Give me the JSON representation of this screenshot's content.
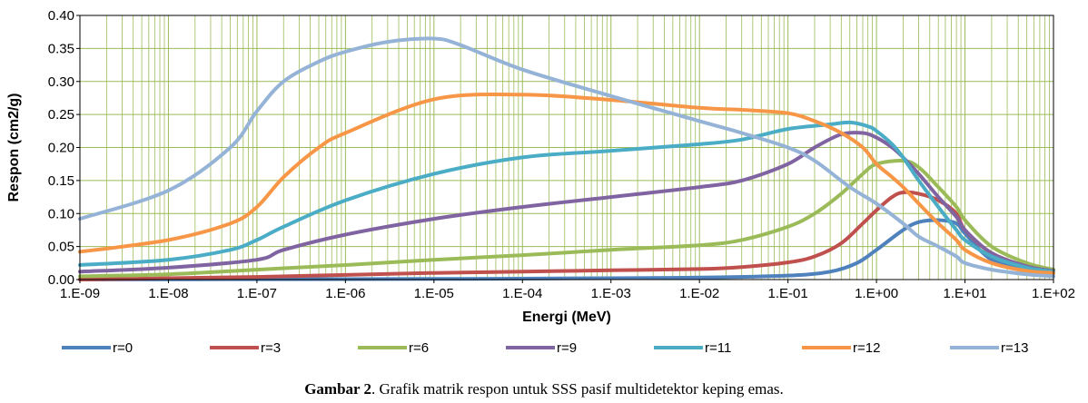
{
  "caption": {
    "label": "Gambar 2",
    "text": ".   Grafik matrik respon untuk SSS pasif multidetektor keping emas."
  },
  "chart_data": {
    "type": "line",
    "xscale": "log",
    "xlabel": "Energi (MeV)",
    "ylabel": "Respon (cm2/g)",
    "xlim": [
      1e-09,
      100
    ],
    "ylim": [
      0,
      0.4
    ],
    "x_ticks": [
      "1.E-09",
      "1.E-08",
      "1.E-07",
      "1.E-06",
      "1.E-05",
      "1.E-04",
      "1.E-03",
      "1.E-02",
      "1.E-01",
      "1.E+00",
      "1.E+01",
      "1.E+02"
    ],
    "y_ticks": [
      "0.00",
      "0.05",
      "0.10",
      "0.15",
      "0.20",
      "0.25",
      "0.30",
      "0.35",
      "0.40"
    ],
    "grid": "log-minor vertical, major horizontal",
    "grid_color": "#9bbb59",
    "legend_position": "bottom",
    "series": [
      {
        "name": "r=0",
        "color": "#4f81bd",
        "x": [
          1e-09,
          1e-07,
          1e-05,
          0.001,
          0.01,
          0.1,
          0.3,
          0.6,
          1,
          2,
          3,
          5,
          8,
          10,
          20,
          50,
          100
        ],
        "y": [
          0.0,
          0.0005,
          0.001,
          0.002,
          0.003,
          0.006,
          0.012,
          0.025,
          0.045,
          0.075,
          0.087,
          0.09,
          0.085,
          0.07,
          0.03,
          0.015,
          0.01
        ]
      },
      {
        "name": "r=3",
        "color": "#c0504d",
        "x": [
          1e-09,
          1e-08,
          1e-07,
          1e-06,
          1e-05,
          0.0001,
          0.001,
          0.01,
          0.03,
          0.1,
          0.2,
          0.4,
          0.7,
          1,
          1.5,
          2,
          3,
          5,
          8,
          10,
          20,
          50,
          100
        ],
        "y": [
          0.0,
          0.002,
          0.004,
          0.007,
          0.01,
          0.012,
          0.014,
          0.016,
          0.019,
          0.026,
          0.035,
          0.055,
          0.085,
          0.105,
          0.125,
          0.132,
          0.13,
          0.12,
          0.1,
          0.075,
          0.04,
          0.02,
          0.012
        ]
      },
      {
        "name": "r=6",
        "color": "#9bbb59",
        "x": [
          1e-09,
          1e-08,
          1e-07,
          1e-06,
          1e-05,
          0.0001,
          0.001,
          0.01,
          0.03,
          0.1,
          0.2,
          0.4,
          0.7,
          1,
          2,
          3,
          5,
          8,
          10,
          20,
          50,
          100
        ],
        "y": [
          0.005,
          0.008,
          0.015,
          0.022,
          0.03,
          0.037,
          0.045,
          0.052,
          0.06,
          0.08,
          0.1,
          0.13,
          0.16,
          0.175,
          0.18,
          0.17,
          0.14,
          0.11,
          0.09,
          0.05,
          0.025,
          0.015
        ]
      },
      {
        "name": "r=9",
        "color": "#8064a2",
        "x": [
          1e-09,
          1e-08,
          1e-07,
          2e-07,
          1e-06,
          1e-05,
          0.0001,
          0.001,
          0.01,
          0.03,
          0.1,
          0.2,
          0.4,
          0.7,
          1,
          1.5,
          2,
          3,
          5,
          8,
          10,
          20,
          50,
          100
        ],
        "y": [
          0.012,
          0.018,
          0.03,
          0.045,
          0.068,
          0.092,
          0.11,
          0.125,
          0.14,
          0.15,
          0.175,
          0.2,
          0.22,
          0.222,
          0.215,
          0.2,
          0.185,
          0.16,
          0.125,
          0.095,
          0.075,
          0.04,
          0.02,
          0.013
        ]
      },
      {
        "name": "r=11",
        "color": "#4bacc6",
        "x": [
          1e-09,
          1e-08,
          5e-08,
          1e-07,
          2e-07,
          1e-06,
          1e-05,
          0.0001,
          0.001,
          0.01,
          0.03,
          0.1,
          0.3,
          0.5,
          0.8,
          1,
          1.5,
          2,
          3,
          5,
          8,
          10,
          20,
          50,
          100
        ],
        "y": [
          0.022,
          0.03,
          0.045,
          0.06,
          0.08,
          0.12,
          0.16,
          0.185,
          0.195,
          0.205,
          0.212,
          0.228,
          0.235,
          0.238,
          0.232,
          0.225,
          0.205,
          0.185,
          0.15,
          0.11,
          0.075,
          0.06,
          0.035,
          0.018,
          0.012
        ]
      },
      {
        "name": "r=12",
        "color": "#f79646",
        "x": [
          1e-09,
          1e-08,
          5e-08,
          1e-07,
          2e-07,
          5e-07,
          1e-06,
          1e-05,
          0.0001,
          0.001,
          0.01,
          0.03,
          0.1,
          0.2,
          0.4,
          0.7,
          1,
          1.5,
          2,
          3,
          5,
          8,
          10,
          20,
          50,
          100
        ],
        "y": [
          0.042,
          0.06,
          0.085,
          0.11,
          0.155,
          0.2,
          0.222,
          0.273,
          0.28,
          0.272,
          0.26,
          0.257,
          0.252,
          0.24,
          0.222,
          0.2,
          0.175,
          0.155,
          0.14,
          0.115,
          0.085,
          0.06,
          0.045,
          0.025,
          0.013,
          0.01
        ]
      },
      {
        "name": "r=13",
        "color": "#95b3d7",
        "x": [
          1e-09,
          1e-08,
          5e-08,
          1e-07,
          2e-07,
          5e-07,
          1e-06,
          3e-06,
          1e-05,
          2e-05,
          0.0001,
          0.001,
          0.01,
          0.03,
          0.1,
          0.2,
          0.5,
          1,
          2,
          3,
          5,
          8,
          10,
          20,
          50,
          100
        ],
        "y": [
          0.092,
          0.135,
          0.2,
          0.255,
          0.3,
          0.33,
          0.345,
          0.36,
          0.365,
          0.355,
          0.318,
          0.278,
          0.24,
          0.222,
          0.2,
          0.18,
          0.14,
          0.115,
          0.085,
          0.065,
          0.05,
          0.035,
          0.025,
          0.015,
          0.008,
          0.005
        ]
      }
    ]
  }
}
